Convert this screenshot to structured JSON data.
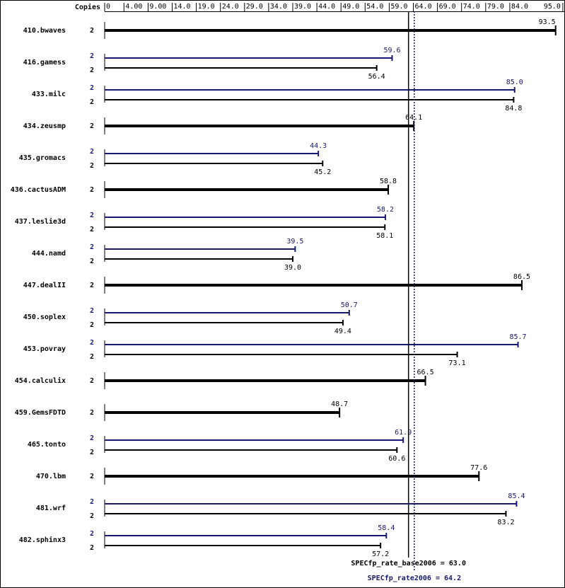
{
  "chart_data": {
    "type": "bar",
    "copies_label": "Copies",
    "categories": [
      "410.bwaves",
      "416.gamess",
      "433.milc",
      "434.zeusmp",
      "435.gromacs",
      "436.cactusADM",
      "437.leslie3d",
      "444.namd",
      "447.dealII",
      "450.soplex",
      "453.povray",
      "454.calculix",
      "459.GemsFDTD",
      "465.tonto",
      "470.lbm",
      "481.wrf",
      "482.sphinx3"
    ],
    "series": [
      {
        "name": "peak",
        "color": "#191970",
        "copies": [
          null,
          2,
          2,
          null,
          2,
          null,
          2,
          2,
          null,
          2,
          2,
          null,
          null,
          2,
          null,
          2,
          2
        ],
        "values": [
          null,
          59.6,
          85.0,
          null,
          44.3,
          null,
          58.2,
          39.5,
          null,
          50.7,
          85.7,
          null,
          null,
          61.9,
          null,
          85.4,
          58.4
        ],
        "value_labels": [
          null,
          "59.6",
          "85.0",
          null,
          "44.3",
          null,
          "58.2",
          "39.5",
          null,
          "50.7",
          "85.7",
          null,
          null,
          "61.9",
          null,
          "85.4",
          "58.4"
        ]
      },
      {
        "name": "base",
        "color": "#000000",
        "copies": [
          2,
          2,
          2,
          2,
          2,
          2,
          2,
          2,
          2,
          2,
          2,
          2,
          2,
          2,
          2,
          2,
          2
        ],
        "values": [
          93.5,
          56.4,
          84.8,
          64.1,
          45.2,
          58.8,
          58.1,
          39.0,
          86.5,
          49.4,
          73.1,
          66.5,
          48.7,
          60.6,
          77.6,
          83.2,
          57.2
        ],
        "value_labels": [
          "93.5",
          "56.4",
          "84.8",
          "64.1",
          "45.2",
          "58.8",
          "58.1",
          "39.0",
          "86.5",
          "49.4",
          "73.1",
          "66.5",
          "48.7",
          "60.6",
          "77.6",
          "83.2",
          "57.2"
        ]
      }
    ],
    "xlim": [
      0,
      95.3
    ],
    "xticks": [
      0,
      {
        "value": 4,
        "label": "4.00"
      },
      {
        "value": 9,
        "label": "9.00"
      },
      {
        "value": 14,
        "label": "14.0"
      },
      {
        "value": 19,
        "label": "19.0"
      },
      {
        "value": 24,
        "label": "24.0"
      },
      {
        "value": 29,
        "label": "29.0"
      },
      {
        "value": 34,
        "label": "34.0"
      },
      {
        "value": 39,
        "label": "39.0"
      },
      {
        "value": 44,
        "label": "44.0"
      },
      {
        "value": 49,
        "label": "49.0"
      },
      {
        "value": 54,
        "label": "54.0"
      },
      {
        "value": 59,
        "label": "59.0"
      },
      {
        "value": 64,
        "label": "64.0"
      },
      {
        "value": 69,
        "label": "69.0"
      },
      {
        "value": 74,
        "label": "74.0"
      },
      {
        "value": 79,
        "label": "79.0"
      },
      {
        "value": 84,
        "label": "84.0"
      },
      {
        "value": 95,
        "label": "95.0"
      }
    ],
    "base_mean": {
      "value": 63.0,
      "label": "SPECfp_rate_base2006 = 63.0"
    },
    "peak_mean": {
      "value": 64.2,
      "label": "SPECfp_rate2006 = 64.2"
    }
  }
}
